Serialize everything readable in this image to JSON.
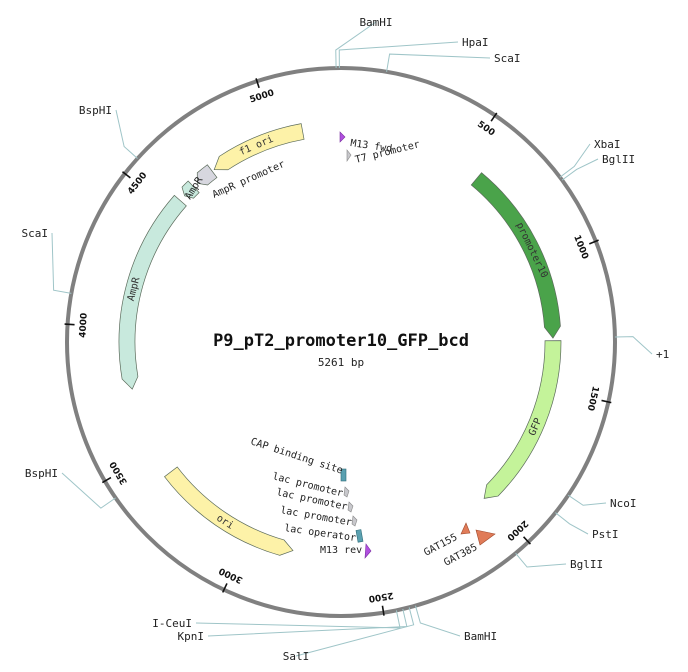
{
  "plasmid": {
    "name": "P9_pT2_promoter10_GFP_bcd",
    "length": 5261,
    "length_label": "5261 bp"
  },
  "colors": {
    "backbone": "#808080",
    "label_line": "#9fc5c8",
    "promoter10": "#4aa34a",
    "gfp": "#c4f39a",
    "ori": "#fdf2a8",
    "ampr": "#c8e9dd",
    "ampr_promoter": "#d7d7df",
    "t7_promoter": "#c8c8cc",
    "m13": "#b14fe0",
    "cap_site": "#5aa0b0",
    "gat": "#e07b58"
  },
  "tick_labels": [
    {
      "value": 500,
      "text": "500"
    },
    {
      "value": 1000,
      "text": "1000"
    },
    {
      "value": 1500,
      "text": "1500"
    },
    {
      "value": 2000,
      "text": "2000"
    },
    {
      "value": 2500,
      "text": "2500"
    },
    {
      "value": 3000,
      "text": "3000"
    },
    {
      "value": 3500,
      "text": "3500"
    },
    {
      "value": 4000,
      "text": "4000"
    },
    {
      "value": 4500,
      "text": "4500"
    },
    {
      "value": 5000,
      "text": "5000"
    }
  ],
  "restriction_sites": [
    {
      "name": "BamHI",
      "position": 5246
    },
    {
      "name": "HpaI",
      "position": 5256
    },
    {
      "name": "ScaI",
      "position": 140
    },
    {
      "name": "XbaI",
      "position": 775
    },
    {
      "name": "BglII",
      "position": 786
    },
    {
      "name": "+1",
      "position": 1300
    },
    {
      "name": "NcoI",
      "position": 1812
    },
    {
      "name": "PstI",
      "position": 1878
    },
    {
      "name": "BglII",
      "position": 2052
    },
    {
      "name": "BamHI",
      "position": 2400
    },
    {
      "name": "SalI",
      "position": 2420
    },
    {
      "name": "KpnI",
      "position": 2440
    },
    {
      "name": "I-CeuI",
      "position": 2460
    },
    {
      "name": "BspHI",
      "position": 3439
    },
    {
      "name": "ScaI",
      "position": 4095
    },
    {
      "name": "BspHI",
      "position": 4560
    }
  ],
  "arc_features": [
    {
      "name": "promoter10",
      "label": "promoter10",
      "start": 580,
      "end": 1300,
      "direction": 1,
      "ring": 1,
      "color": "#4aa34a"
    },
    {
      "name": "gfp",
      "label": "GFP",
      "start": 1310,
      "end": 2010,
      "direction": 1,
      "ring": 1,
      "color": "#c4f39a"
    },
    {
      "name": "ori",
      "label": "ori",
      "start": 2820,
      "end": 3400,
      "direction": -1,
      "ring": 2,
      "color": "#fdf2a8"
    },
    {
      "name": "ampr",
      "label": "AmpR",
      "start": 3760,
      "end": 4550,
      "direction": -1,
      "ring": 2,
      "color": "#c8e9dd"
    },
    {
      "name": "ampr-tail",
      "label": "AmpR",
      "start": 4575,
      "end": 4625,
      "direction": -1,
      "ring": 2,
      "color": "#c8e9dd"
    },
    {
      "name": "ampr-promoter",
      "label": "AmpR promoter",
      "start": 4645,
      "end": 4720,
      "direction": -1,
      "ring": 2,
      "color": "#d7d7df"
    },
    {
      "name": "f1-ori",
      "label": "f1 ori",
      "start": 4730,
      "end": 5110,
      "direction": -1,
      "ring": 2,
      "color": "#fdf2a8"
    }
  ],
  "small_features": [
    {
      "name": "m13-fwd",
      "label": "M13 fwd",
      "color": "#b14fe0"
    },
    {
      "name": "t7-promoter",
      "label": "T7 promoter",
      "color": "#c8c8cc"
    },
    {
      "name": "cap-binding-site",
      "label": "CAP binding site",
      "color": "#5aa0b0"
    },
    {
      "name": "lac-promoter-1",
      "label": "lac promoter",
      "color": "#c8c8cc"
    },
    {
      "name": "lac-promoter-2",
      "label": "lac promoter",
      "color": "#c8c8cc"
    },
    {
      "name": "lac-promoter-3",
      "label": "lac promoter",
      "color": "#c8c8cc"
    },
    {
      "name": "lac-operator",
      "label": "lac operator",
      "color": "#5aa0b0"
    },
    {
      "name": "m13-rev",
      "label": "M13 rev",
      "color": "#b14fe0"
    },
    {
      "name": "gat155",
      "label": "GAT155",
      "color": "#e07b58"
    },
    {
      "name": "gat385",
      "label": "GAT385",
      "color": "#e07b58"
    }
  ]
}
